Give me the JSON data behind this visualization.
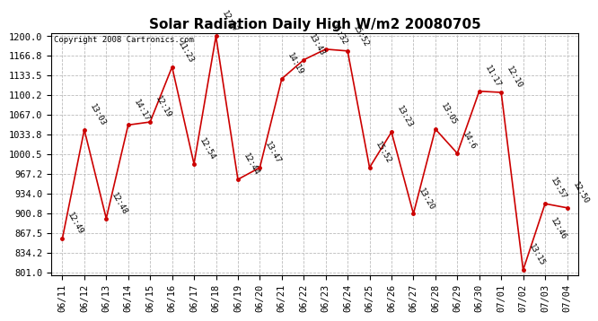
{
  "title": "Solar Radiation Daily High W/m2 20080705",
  "copyright": "Copyright 2008 Cartronics.com",
  "dates": [
    "06/11",
    "06/12",
    "06/13",
    "06/14",
    "06/15",
    "06/16",
    "06/17",
    "06/18",
    "06/19",
    "06/20",
    "06/21",
    "06/22",
    "06/23",
    "06/24",
    "06/25",
    "06/26",
    "06/27",
    "06/28",
    "06/29",
    "06/30",
    "07/01",
    "07/02",
    "07/03",
    "07/04"
  ],
  "values": [
    858,
    1042,
    892,
    1050,
    1055,
    1148,
    984,
    1200,
    958,
    978,
    1128,
    1160,
    1178,
    1175,
    978,
    1038,
    900,
    1043,
    1002,
    1107,
    1105,
    805,
    917,
    910
  ],
  "labels": [
    "12:49",
    "13:03",
    "12:48",
    "14:17",
    "12:19",
    "11:23",
    "12:54",
    "12:17",
    "12:44",
    "13:47",
    "14:19",
    "13:43",
    "11:32",
    "15:52",
    "15:52",
    "13:23",
    "13:20",
    "13:05",
    "14:6",
    "11:17",
    "12:10",
    "13:15",
    "15:57",
    "12:50"
  ],
  "extra_labels": [
    null,
    null,
    null,
    null,
    null,
    null,
    null,
    null,
    null,
    null,
    null,
    null,
    null,
    null,
    null,
    null,
    null,
    null,
    null,
    null,
    null,
    null,
    "12:46",
    null
  ],
  "ymin": 801.0,
  "ymax": 1200.0,
  "yticks": [
    801.0,
    834.2,
    867.5,
    900.8,
    934.0,
    967.2,
    1000.5,
    1033.8,
    1067.0,
    1100.2,
    1133.5,
    1166.8,
    1200.0
  ],
  "line_color": "#cc0000",
  "marker_color": "#cc0000",
  "bg_color": "#ffffff",
  "grid_color": "#bbbbbb",
  "title_fontsize": 11,
  "label_fontsize": 6.5,
  "tick_fontsize": 7.5
}
